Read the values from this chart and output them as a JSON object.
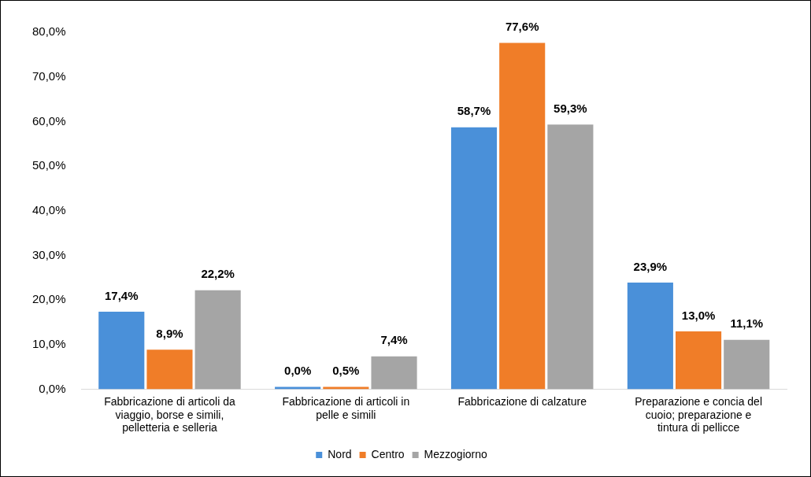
{
  "chart_data": {
    "type": "bar",
    "categories": [
      "Fabbricazione di articoli da viaggio, borse e simili, pelletteria e selleria",
      "Fabbricazione di articoli in pelle e simili",
      "Fabbricazione di calzature",
      "Preparazione e concia del cuoio; preparazione e tintura di pellicce"
    ],
    "series": [
      {
        "name": "Nord",
        "color": "#4a90d9",
        "values": [
          17.4,
          0.0,
          58.7,
          23.9
        ],
        "value_labels": [
          "17,4%",
          "0,0%",
          "58,7%",
          "23,9%"
        ]
      },
      {
        "name": "Centro",
        "color": "#f07d28",
        "values": [
          8.9,
          0.5,
          77.6,
          13.0
        ],
        "value_labels": [
          "8,9%",
          "0,5%",
          "77,6%",
          "13,0%"
        ]
      },
      {
        "name": "Mezzogiorno",
        "color": "#a5a5a5",
        "values": [
          22.2,
          7.4,
          59.3,
          11.1
        ],
        "value_labels": [
          "22,2%",
          "7,4%",
          "59,3%",
          "11,1%"
        ]
      }
    ],
    "ylim": [
      0,
      80
    ],
    "yticks": [
      {
        "value": 0,
        "label": "0,0%"
      },
      {
        "value": 10,
        "label": "10,0%"
      },
      {
        "value": 20,
        "label": "20,0%"
      },
      {
        "value": 30,
        "label": "30,0%"
      },
      {
        "value": 40,
        "label": "40,0%"
      },
      {
        "value": 50,
        "label": "50,0%"
      },
      {
        "value": 60,
        "label": "60,0%"
      },
      {
        "value": 70,
        "label": "70,0%"
      },
      {
        "value": 80,
        "label": "80,0%"
      }
    ],
    "grid": false,
    "legend": "bottom"
  }
}
